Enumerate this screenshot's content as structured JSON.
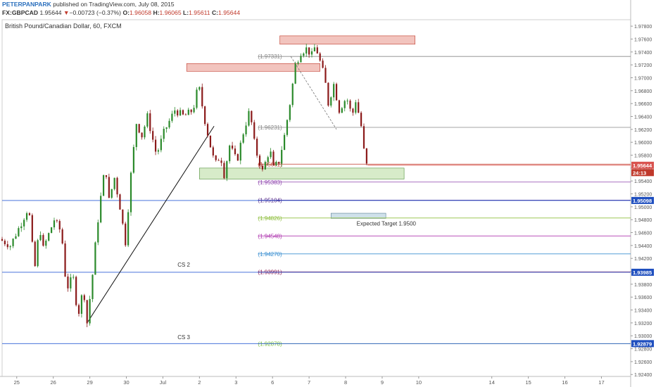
{
  "header": {
    "user": "PETERPANPARK",
    "published": "published on TradingView.com, July 08, 2015",
    "symbol": "FX:GBPCAD",
    "last": "1.95644",
    "change_arrow": "▼",
    "change": "−0.00723 (−0.37%)",
    "open_label": "O:",
    "open": "1.96058",
    "high_label": "H:",
    "high": "1.96065",
    "low_label": "L:",
    "low": "1.95611",
    "close_label": "C:",
    "close": "1.95644"
  },
  "chart_title": "British Pound/Canadian Dollar, 60, FXCM",
  "colors": {
    "up": "#2b8a2b",
    "down": "#8b1a1a",
    "price_tag": "#d9534f",
    "blue_tag": "#1f4fbf"
  },
  "chart_data": {
    "type": "candlestick",
    "ylim": [
      1.9237,
      1.979
    ],
    "y_ticks": [
      "1.97800",
      "1.97600",
      "1.97400",
      "1.97200",
      "1.97000",
      "1.96800",
      "1.96600",
      "1.96400",
      "1.96200",
      "1.96000",
      "1.95800",
      "1.95600",
      "1.95400",
      "1.95200",
      "1.95000",
      "1.94800",
      "1.94600",
      "1.94400",
      "1.94200",
      "1.94000",
      "1.93800",
      "1.93600",
      "1.93400",
      "1.93200",
      "1.93000",
      "1.92800",
      "1.92600",
      "1.92400"
    ],
    "x_labels": [
      {
        "label": "25",
        "pos": 0.4
      },
      {
        "label": "26",
        "pos": 1.4
      },
      {
        "label": "29",
        "pos": 2.4
      },
      {
        "label": "30",
        "pos": 3.4
      },
      {
        "label": "Jul",
        "pos": 4.4
      },
      {
        "label": "2",
        "pos": 5.4
      },
      {
        "label": "3",
        "pos": 6.4
      },
      {
        "label": "6",
        "pos": 7.4
      },
      {
        "label": "7",
        "pos": 8.4
      },
      {
        "label": "8",
        "pos": 9.4
      },
      {
        "label": "9",
        "pos": 10.4
      },
      {
        "label": "10",
        "pos": 11.4
      },
      {
        "label": "14",
        "pos": 13.4
      },
      {
        "label": "15",
        "pos": 14.4
      },
      {
        "label": "16",
        "pos": 15.4
      },
      {
        "label": "17",
        "pos": 16.4
      }
    ],
    "x_range": [
      0,
      17.2
    ],
    "path": [
      [
        0.0,
        1.945
      ],
      [
        0.3,
        1.944
      ],
      [
        0.6,
        1.9475
      ],
      [
        0.8,
        1.95
      ],
      [
        0.9,
        1.944
      ],
      [
        0.95,
        1.9395
      ],
      [
        1.1,
        1.947
      ],
      [
        1.2,
        1.9435
      ],
      [
        1.5,
        1.948
      ],
      [
        1.7,
        1.946
      ],
      [
        1.8,
        1.9395
      ],
      [
        1.9,
        1.937
      ],
      [
        2.0,
        1.94
      ],
      [
        2.15,
        1.933
      ],
      [
        2.3,
        1.9375
      ],
      [
        2.4,
        1.932
      ],
      [
        2.55,
        1.9395
      ],
      [
        2.65,
        1.9455
      ],
      [
        2.75,
        1.9505
      ],
      [
        2.9,
        1.9565
      ],
      [
        3.0,
        1.951
      ],
      [
        3.15,
        1.9545
      ],
      [
        3.3,
        1.95
      ],
      [
        3.45,
        1.9445
      ],
      [
        3.6,
        1.955
      ],
      [
        3.75,
        1.963
      ],
      [
        3.9,
        1.961
      ],
      [
        4.05,
        1.964
      ],
      [
        4.3,
        1.958
      ],
      [
        4.5,
        1.9615
      ],
      [
        4.8,
        1.965
      ],
      [
        5.05,
        1.964
      ],
      [
        5.3,
        1.965
      ],
      [
        5.45,
        1.969
      ],
      [
        5.6,
        1.964
      ],
      [
        5.75,
        1.96
      ],
      [
        5.9,
        1.9565
      ],
      [
        6.05,
        1.958
      ],
      [
        6.15,
        1.955
      ],
      [
        6.3,
        1.9595
      ],
      [
        6.5,
        1.957
      ],
      [
        6.65,
        1.961
      ],
      [
        6.85,
        1.965
      ],
      [
        7.0,
        1.959
      ],
      [
        7.2,
        1.9555
      ],
      [
        7.4,
        1.959
      ],
      [
        7.5,
        1.956
      ],
      [
        7.65,
        1.957
      ],
      [
        7.8,
        1.961
      ],
      [
        7.95,
        1.966
      ],
      [
        8.1,
        1.972
      ],
      [
        8.25,
        1.974
      ],
      [
        8.4,
        1.9745
      ],
      [
        8.55,
        1.9735
      ],
      [
        8.65,
        1.975
      ],
      [
        8.8,
        1.972
      ],
      [
        8.9,
        1.97
      ],
      [
        9.0,
        1.966
      ],
      [
        9.15,
        1.969
      ],
      [
        9.3,
        1.965
      ],
      [
        9.5,
        1.967
      ],
      [
        9.65,
        1.964
      ],
      [
        9.75,
        1.9665
      ],
      [
        9.85,
        1.964
      ],
      [
        9.95,
        1.961
      ],
      [
        10.0,
        1.95644
      ]
    ],
    "boxes": [
      {
        "color": "red",
        "x0": 7.6,
        "x1": 11.3,
        "y0": 1.9765,
        "y1": 1.9752
      },
      {
        "color": "red",
        "x0": 5.05,
        "x1": 8.7,
        "y0": 1.9722,
        "y1": 1.971
      },
      {
        "color": "green",
        "x0": 5.4,
        "x1": 11.0,
        "y0": 1.956,
        "y1": 1.9543
      },
      {
        "color": "blue",
        "x0": 9.0,
        "x1": 10.5,
        "y0": 1.949,
        "y1": 1.9482
      }
    ],
    "trendline": [
      [
        2.35,
        1.9322
      ],
      [
        5.8,
        1.9625
      ]
    ],
    "diag": [
      [
        7.9,
        1.9733
      ],
      [
        9.15,
        1.962
      ]
    ],
    "levels": [
      {
        "label": "(1.97331)",
        "value": 1.97331,
        "color": "#888888",
        "lx": 7.0
      },
      {
        "label": "(1.96231)",
        "value": 1.96231,
        "color": "#888888",
        "lx": 7.0
      },
      {
        "label": "(1.95661)",
        "value": 1.95661,
        "color": "#c0392b",
        "lx": 7.0
      },
      {
        "label": "(1.95383)",
        "value": 1.95383,
        "color": "#8e44ad",
        "lx": 7.0
      },
      {
        "label": "(1.95104)",
        "value": 1.95104,
        "color": "#5b2c8a",
        "lx": 7.0
      },
      {
        "label": "(1.94826)",
        "value": 1.94826,
        "color": "#8fbf3f",
        "lx": 7.0
      },
      {
        "label": "(1.94548)",
        "value": 1.94548,
        "color": "#b03ab0",
        "lx": 7.0
      },
      {
        "label": "(1.94270)",
        "value": 1.9427,
        "color": "#3a8fd1",
        "lx": 7.0
      },
      {
        "label": "(1.93991)",
        "value": 1.93991,
        "color": "#8b1a50",
        "lx": 7.0
      },
      {
        "label": "(1.92878)",
        "value": 1.92878,
        "color": "#7cbf3f",
        "lx": 7.0
      }
    ],
    "price_tags": [
      {
        "label": "1.95644",
        "value": 1.95644,
        "bg": "#d9534f"
      },
      {
        "label": "24:13",
        "value": 1.9553,
        "bg": "#c0392b"
      },
      {
        "label": "1.95098",
        "value": 1.95098,
        "bg": "#1f4fbf"
      },
      {
        "label": "1.93985",
        "value": 1.93985,
        "bg": "#1f4fbf"
      },
      {
        "label": "1.92879",
        "value": 1.92879,
        "bg": "#1f4fbf"
      }
    ],
    "annotations": [
      {
        "text": "Expected Target 1.9500",
        "x": 9.7,
        "y": 1.9471
      },
      {
        "text": "CS 2",
        "x": 4.8,
        "y": 1.9407
      },
      {
        "text": "CS 3",
        "x": 4.8,
        "y": 1.9295
      }
    ]
  }
}
